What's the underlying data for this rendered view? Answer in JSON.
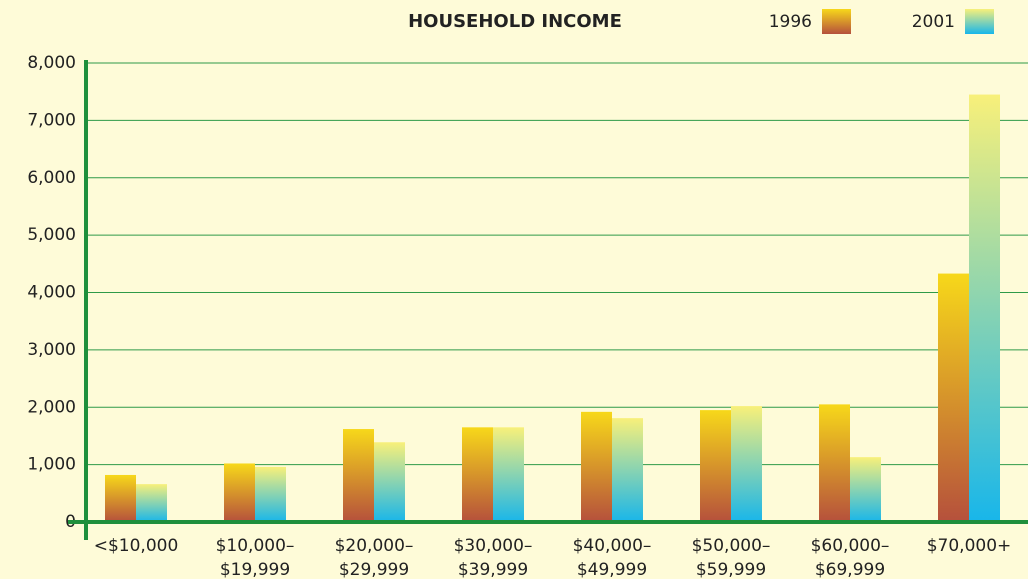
{
  "chart_data": {
    "type": "bar",
    "title": "HOUSEHOLD INCOME",
    "categories": [
      [
        "<$10,000"
      ],
      [
        "$10,000–",
        "$19,999"
      ],
      [
        "$20,000–",
        "$29,999"
      ],
      [
        "$30,000–",
        "$39,999"
      ],
      [
        "$40,000–",
        "$49,999"
      ],
      [
        "$50,000–",
        "$59,999"
      ],
      [
        "$60,000–",
        "$69,999"
      ],
      [
        "$70,000+"
      ]
    ],
    "series": [
      {
        "name": "1996",
        "colors": [
          "#f7d81a",
          "#b5503c"
        ],
        "values": [
          820,
          1020,
          1620,
          1650,
          1920,
          1950,
          2050,
          4330
        ]
      },
      {
        "name": "2001",
        "colors": [
          "#f8f07a",
          "#18b6ea"
        ],
        "values": [
          660,
          960,
          1390,
          1650,
          1810,
          2020,
          1130,
          7450
        ]
      }
    ],
    "ylim": [
      0,
      8000
    ],
    "yticks": [
      0,
      {
        "value": 1000,
        "label": "1,000"
      },
      {
        "value": 2000,
        "label": "2,000"
      },
      {
        "value": 3000,
        "label": "3,000"
      },
      {
        "value": 4000,
        "label": "4,000"
      },
      {
        "value": 5000,
        "label": "5,000"
      },
      {
        "value": 6000,
        "label": "6,000"
      },
      {
        "value": 7000,
        "label": "7,000"
      },
      {
        "value": 8000,
        "label": "8,000"
      }
    ],
    "grid": true
  }
}
